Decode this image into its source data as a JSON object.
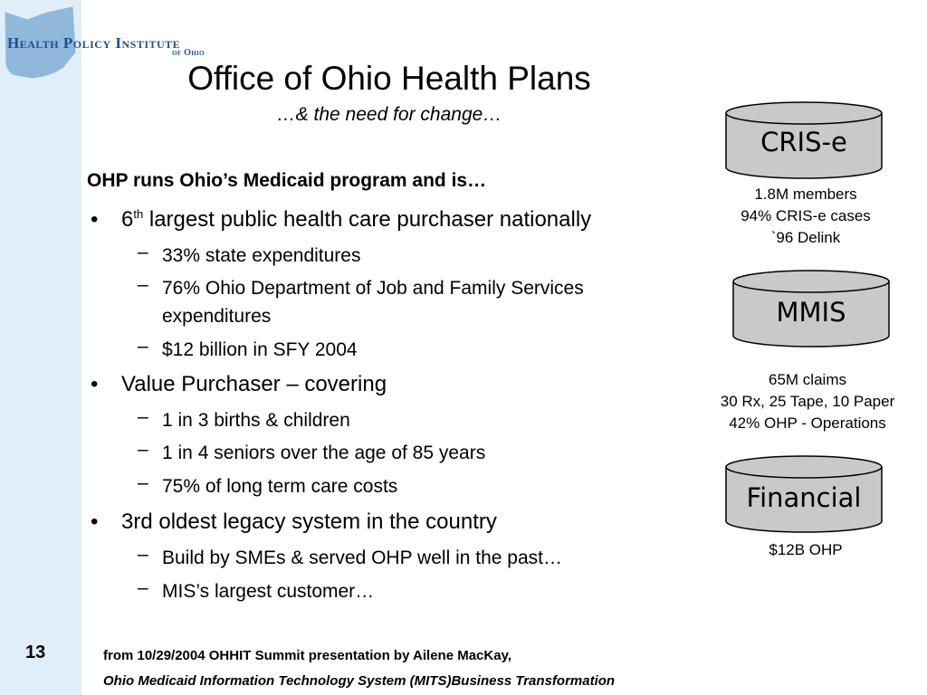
{
  "logo": {
    "line1": "Health Policy Institute",
    "line2": "of Ohio"
  },
  "slide": {
    "title": "Office of Ohio Health Plans",
    "subtitle": "…& the need for change…",
    "heading": "OHP runs Ohio’s Medicaid program and is…",
    "bullets": [
      {
        "prefix": "6",
        "sup": "th",
        "text": " largest public health care purchaser nationally",
        "subs": [
          "33% state expenditures",
          "76% Ohio Department of Job and Family Services expenditures",
          "$12 billion in SFY 2004"
        ]
      },
      {
        "text": "Value Purchaser – covering",
        "subs": [
          "1 in 3 births & children",
          "1 in 4 seniors over the age of 85 years",
          "75% of long term care costs"
        ]
      },
      {
        "text": "3rd oldest legacy system in the country",
        "subs": [
          "Build by SMEs & served OHP well in the past…",
          "MIS’s largest customer…"
        ]
      }
    ]
  },
  "systems": [
    {
      "label": "CRIS-e",
      "notes": [
        "1.8M members",
        "94% CRIS-e cases",
        "`96 Delink"
      ]
    },
    {
      "label": "MMIS",
      "notes": [
        "65M claims",
        "30 Rx, 25 Tape, 10 Paper",
        "42% OHP - Operations"
      ]
    },
    {
      "label": "Financial",
      "notes": [
        "$12B OHP"
      ]
    }
  ],
  "page_number": "13",
  "footer": {
    "line1": "from 10/29/2004 OHHIT Summit presentation by Ailene MacKay,",
    "line2": "Ohio Medicaid Information Technology System (MITS)Business Transformation"
  },
  "colors": {
    "sidebar": "#dfeef8",
    "logo_text": "#1f4e8c",
    "ohio_shape": "#8fb8db",
    "cylinder_fill": "#c9c9c9"
  },
  "icons": {
    "logo_shape": "ohio-state-icon",
    "bullet": "bullet-dot",
    "sub_bullet": "en-dash"
  }
}
